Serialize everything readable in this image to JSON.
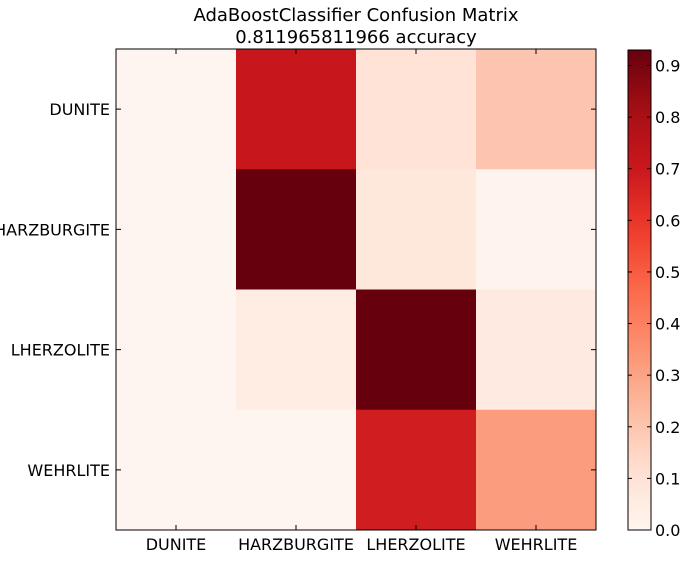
{
  "chart_data": {
    "type": "heatmap",
    "title": "AdaBoostClassifier Confusion Matrix",
    "subtitle": "0.811965811966 accuracy",
    "row_labels": [
      "DUNITE",
      "HARZBURGITE",
      "LHERZOLITE",
      "WEHRLITE"
    ],
    "col_labels": [
      "DUNITE",
      "HARZBURGITE",
      "LHERZOLITE",
      "WEHRLITE"
    ],
    "values": [
      [
        0.0,
        0.71,
        0.1,
        0.2
      ],
      [
        0.0,
        0.93,
        0.08,
        0.01
      ],
      [
        0.0,
        0.05,
        0.93,
        0.06
      ],
      [
        0.0,
        0.0,
        0.68,
        0.32
      ]
    ],
    "colormap": "Reds",
    "vmin": 0.0,
    "vmax": 0.93,
    "colorbar_ticks": [
      "0.0",
      "0.1",
      "0.2",
      "0.3",
      "0.4",
      "0.5",
      "0.6",
      "0.7",
      "0.8",
      "0.9"
    ],
    "colorbar_tick_values": [
      0.0,
      0.1,
      0.2,
      0.3,
      0.4,
      0.5,
      0.6,
      0.7,
      0.8,
      0.9
    ],
    "grid": false
  }
}
